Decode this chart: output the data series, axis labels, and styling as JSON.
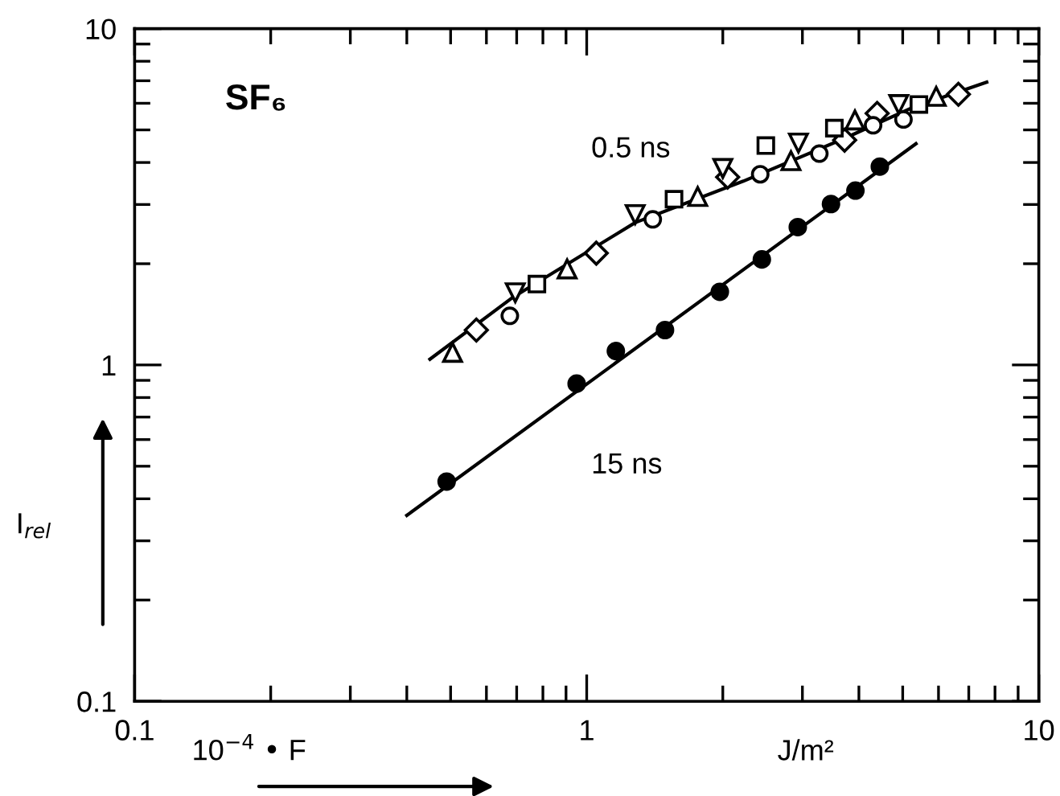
{
  "chart_data": {
    "type": "scatter",
    "title": "SF₆",
    "xlabel": "10$^{−4}$ • F",
    "ylabel": "I$_{rel}$",
    "log": "xy",
    "grid": false,
    "xlim": [
      0.1,
      10
    ],
    "ylim": [
      0.1,
      10
    ],
    "xticks": [
      0.1,
      {
        "value": 0.2,
        "label": null
      },
      {
        "value": 0.3,
        "label": null
      },
      {
        "value": 0.4,
        "label": null
      },
      {
        "value": 0.5,
        "label": null
      },
      {
        "value": 0.6,
        "label": null
      },
      {
        "value": 0.7,
        "label": null
      },
      {
        "value": 0.8,
        "label": null
      },
      {
        "value": 0.9,
        "label": null
      },
      1,
      {
        "value": 2,
        "label": null
      },
      {
        "value": 3,
        "label": null
      },
      {
        "value": 4,
        "label": null
      },
      {
        "value": 5,
        "label": null
      },
      {
        "value": 6,
        "label": null
      },
      {
        "value": 7,
        "label": null
      },
      {
        "value": 8,
        "label": null
      },
      {
        "value": 9,
        "label": null
      },
      10
    ],
    "yticks": [
      0.1,
      {
        "value": 0.2,
        "label": null
      },
      {
        "value": 0.3,
        "label": null
      },
      {
        "value": 0.4,
        "label": null
      },
      {
        "value": 0.5,
        "label": null
      },
      {
        "value": 0.6,
        "label": null
      },
      {
        "value": 0.7,
        "label": null
      },
      {
        "value": 0.8,
        "label": null
      },
      {
        "value": 0.9,
        "label": null
      },
      1,
      {
        "value": 2,
        "label": null
      },
      {
        "value": 3,
        "label": null
      },
      {
        "value": 4,
        "label": null
      },
      {
        "value": 5,
        "label": null
      },
      {
        "value": 6,
        "label": null
      },
      {
        "value": 7,
        "label": null
      },
      {
        "value": 8,
        "label": null
      },
      {
        "value": 9,
        "label": null
      },
      10
    ],
    "annotations": [
      "J/m²"
    ],
    "series": [
      {
        "marker": "triangle",
        "color": "#ffffff",
        "x": [
          0.505,
          0.905,
          1.76,
          2.83,
          3.92,
          5.93
        ],
        "values": [
          1.09,
          1.93,
          3.17,
          4.05,
          5.35,
          6.29
        ]
      },
      {
        "marker": "diamond",
        "color": "#ffffff",
        "x": [
          0.57,
          1.05,
          2.05,
          3.72,
          4.39,
          6.64
        ],
        "values": [
          1.27,
          2.15,
          3.62,
          4.66,
          5.6,
          6.38
        ]
      },
      {
        "marker": "circle",
        "color": "#ffffff",
        "x": [
          0.676,
          1.4,
          2.42,
          3.27,
          4.3,
          5.02
        ],
        "values": [
          1.4,
          2.71,
          3.69,
          4.25,
          5.16,
          5.37
        ]
      },
      {
        "marker": "triangle_down",
        "color": "#ffffff",
        "x": [
          0.695,
          1.28,
          2.0,
          2.94,
          4.9
        ],
        "values": [
          1.64,
          2.8,
          3.84,
          4.57,
          5.95
        ]
      },
      {
        "marker": "square",
        "color": "#ffffff",
        "x": [
          0.776,
          1.56,
          2.49,
          3.53,
          5.43
        ],
        "values": [
          1.74,
          3.11,
          4.49,
          5.06,
          5.95
        ]
      },
      {
        "marker": "circle",
        "color": "#000000",
        "x": [
          0.49,
          0.95,
          1.16,
          1.49,
          1.97,
          2.44,
          2.93,
          3.47,
          3.93,
          4.45
        ],
        "values": [
          0.45,
          0.88,
          1.1,
          1.27,
          1.65,
          2.06,
          2.57,
          3.01,
          3.3,
          3.89
        ]
      },
      {
        "type": "line",
        "name": "0.5 ns",
        "marker": "none",
        "color": "#000000",
        "x": [
          0.45,
          0.687,
          1.28,
          2.22,
          3.72,
          5.25,
          7.67
        ],
        "values": [
          1.04,
          1.59,
          2.65,
          3.52,
          4.72,
          5.82,
          6.93
        ]
      },
      {
        "type": "line",
        "name": "15 ns",
        "marker": "none",
        "color": "#000000",
        "x": [
          0.4,
          5.35
        ],
        "values": [
          0.357,
          4.55
        ]
      }
    ]
  }
}
